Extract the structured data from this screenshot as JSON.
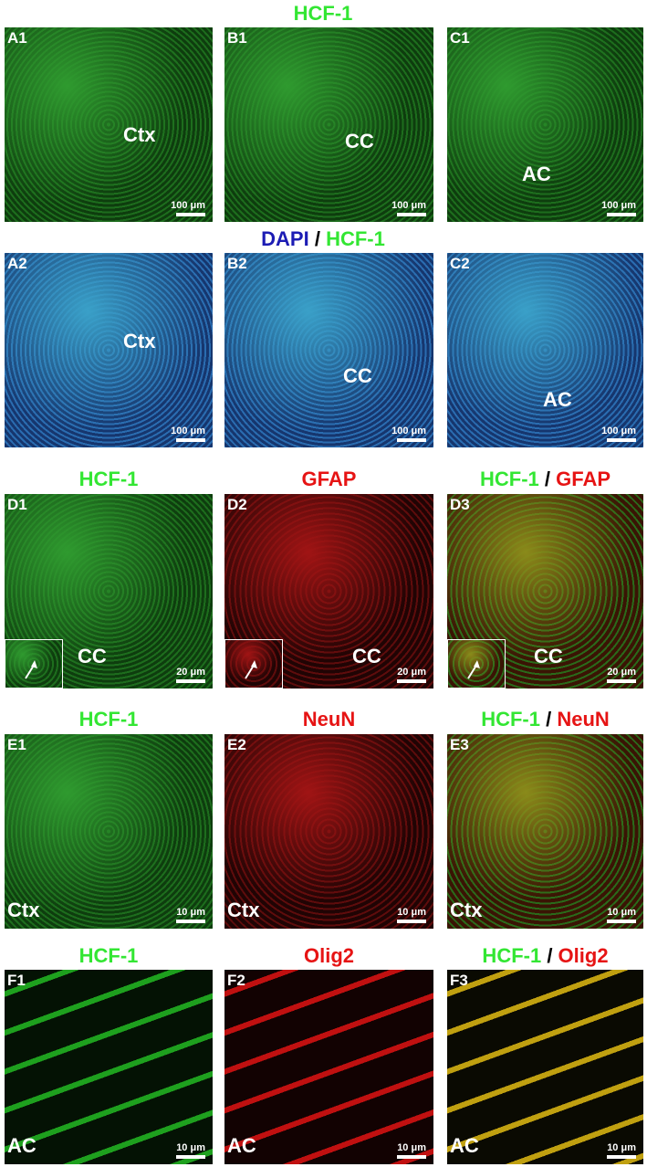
{
  "rows": [
    {
      "titles": [
        [
          {
            "text": "HCF-1",
            "color": "#33e633"
          }
        ]
      ],
      "panels": [
        {
          "label": "A1",
          "region": "Ctx",
          "scale": "100 μm",
          "stain": "green"
        },
        {
          "label": "B1",
          "region": "CC",
          "scale": "100 μm",
          "stain": "green"
        },
        {
          "label": "C1",
          "region": "AC",
          "scale": "100 μm",
          "stain": "green"
        }
      ]
    },
    {
      "titles": [
        [
          {
            "text": "DAPI",
            "color": "#1c1cb4"
          },
          {
            "text": " / ",
            "color": "#000000"
          },
          {
            "text": "HCF-1",
            "color": "#33e633"
          }
        ]
      ],
      "panels": [
        {
          "label": "A2",
          "region": "Ctx",
          "scale": "100 μm",
          "stain": "dapi"
        },
        {
          "label": "B2",
          "region": "CC",
          "scale": "100 μm",
          "stain": "dapi"
        },
        {
          "label": "C2",
          "region": "AC",
          "scale": "100 μm",
          "stain": "dapi"
        }
      ]
    },
    {
      "titles": [
        [
          {
            "text": "HCF-1",
            "color": "#33e633"
          }
        ],
        [
          {
            "text": "GFAP",
            "color": "#e61414"
          }
        ],
        [
          {
            "text": "HCF-1",
            "color": "#33e633"
          },
          {
            "text": " / ",
            "color": "#000000"
          },
          {
            "text": "GFAP",
            "color": "#e61414"
          }
        ]
      ],
      "panels": [
        {
          "label": "D1",
          "region": "CC",
          "scale": "20 μm",
          "stain": "green",
          "inset": true
        },
        {
          "label": "D2",
          "region": "CC",
          "scale": "20 μm",
          "stain": "red",
          "inset": true
        },
        {
          "label": "D3",
          "region": "CC",
          "scale": "20 μm",
          "stain": "merge",
          "inset": true
        }
      ]
    },
    {
      "titles": [
        [
          {
            "text": "HCF-1",
            "color": "#33e633"
          }
        ],
        [
          {
            "text": "NeuN",
            "color": "#e61414"
          }
        ],
        [
          {
            "text": "HCF-1",
            "color": "#33e633"
          },
          {
            "text": " / ",
            "color": "#000000"
          },
          {
            "text": "NeuN",
            "color": "#e61414"
          }
        ]
      ],
      "panels": [
        {
          "label": "E1",
          "region": "Ctx",
          "scale": "10 μm",
          "stain": "green"
        },
        {
          "label": "E2",
          "region": "Ctx",
          "scale": "10 μm",
          "stain": "red"
        },
        {
          "label": "E3",
          "region": "Ctx",
          "scale": "10 μm",
          "stain": "merge"
        }
      ]
    },
    {
      "titles": [
        [
          {
            "text": "HCF-1",
            "color": "#33e633"
          }
        ],
        [
          {
            "text": "Olig2",
            "color": "#e61414"
          }
        ],
        [
          {
            "text": "HCF-1",
            "color": "#33e633"
          },
          {
            "text": " / ",
            "color": "#000000"
          },
          {
            "text": "Olig2",
            "color": "#e61414"
          }
        ]
      ],
      "panels": [
        {
          "label": "F1",
          "region": "AC",
          "scale": "10 μm",
          "stain": "dark-green"
        },
        {
          "label": "F2",
          "region": "AC",
          "scale": "10 μm",
          "stain": "dark-red"
        },
        {
          "label": "F3",
          "region": "AC",
          "scale": "10 μm",
          "stain": "dark-merge"
        }
      ]
    }
  ]
}
